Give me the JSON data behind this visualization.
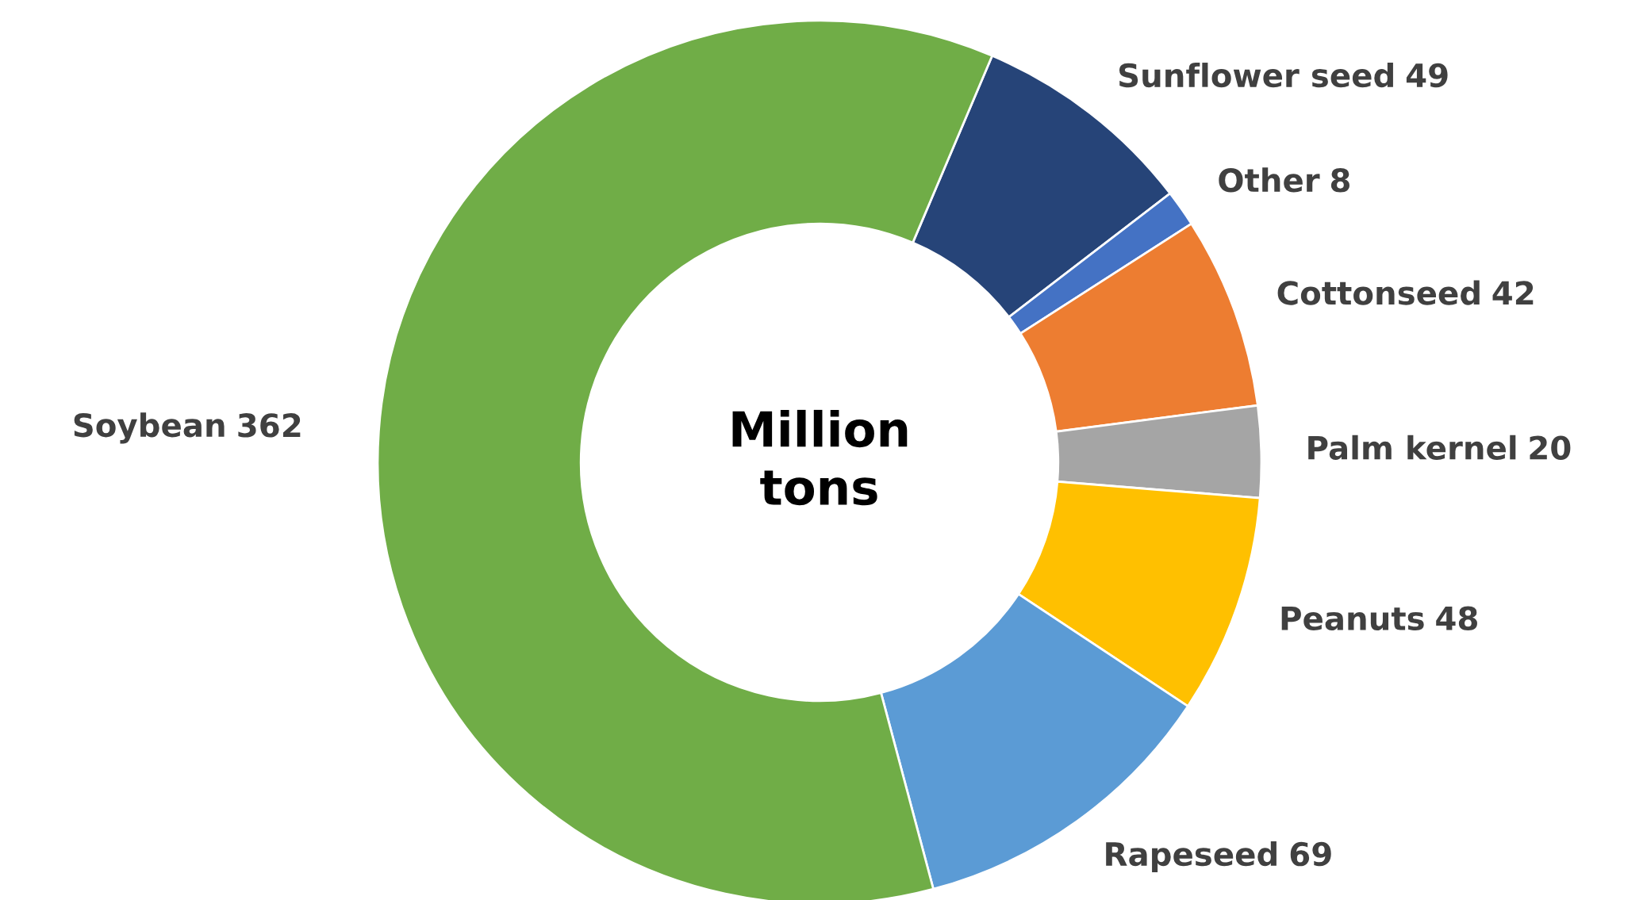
{
  "chart_data": {
    "type": "donut",
    "categories": [
      "Sunflower seed",
      "Other",
      "Cottonseed",
      "Palm kernel",
      "Peanuts",
      "Rapeseed",
      "Soybean"
    ],
    "values": [
      49,
      8,
      42,
      20,
      48,
      69,
      362
    ],
    "colors": [
      "#264478",
      "#4472c4",
      "#ed7d31",
      "#a5a5a5",
      "#ffc000",
      "#5b9bd5",
      "#70ad47"
    ],
    "data_labels": true,
    "annotations": [
      "Million\ntons"
    ]
  }
}
